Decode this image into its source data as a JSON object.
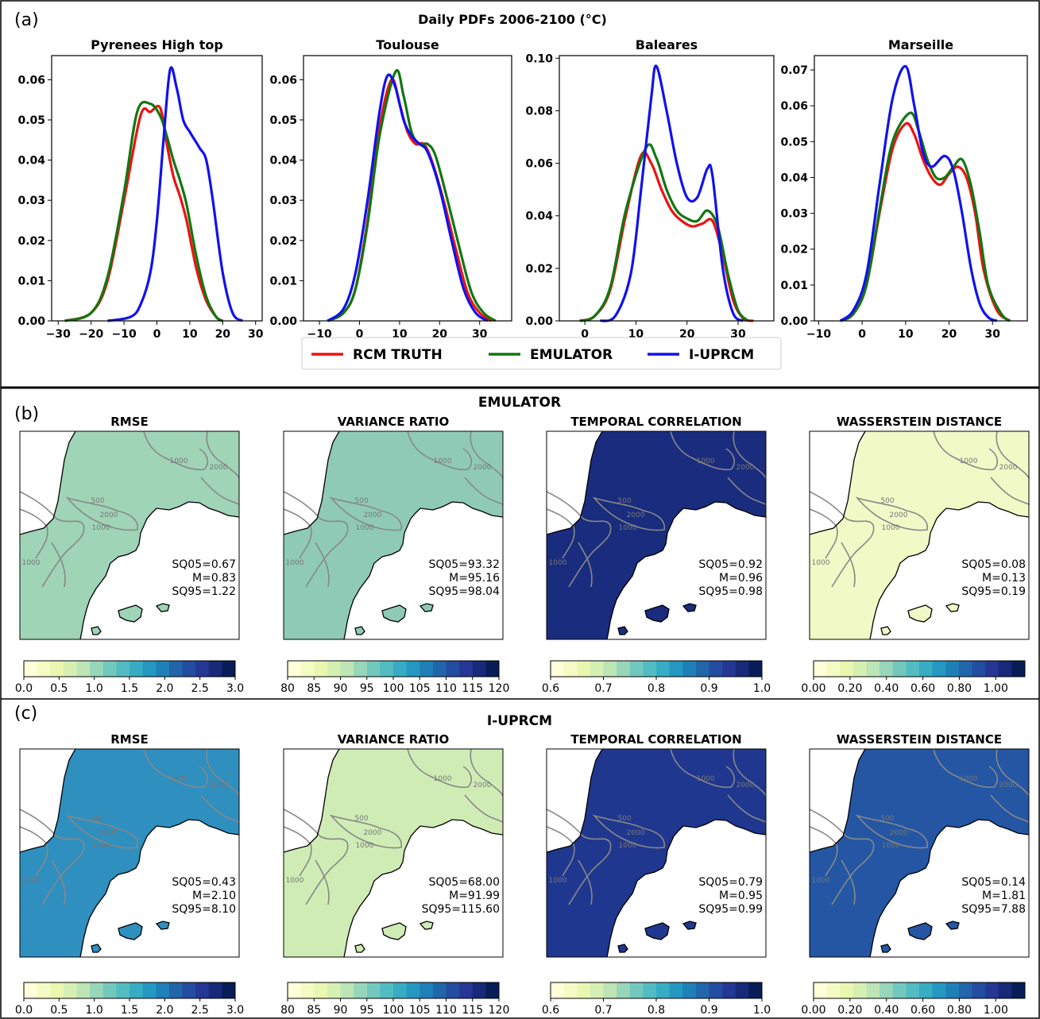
{
  "panel_a": {
    "label": "(a)",
    "title": "Daily PDFs 2006-2100  (°C)",
    "legend": [
      {
        "label": "RCM TRUTH",
        "color": "#ee1111"
      },
      {
        "label": "EMULATOR",
        "color": "#117711"
      },
      {
        "label": "I-UPRCM",
        "color": "#1111ee"
      }
    ]
  },
  "panel_b": {
    "label": "(b)",
    "title": "EMULATOR"
  },
  "panel_c": {
    "label": "(c)",
    "title": "I-UPRCM"
  },
  "chart_data": [
    {
      "type": "line",
      "title": "Pyrenees High top",
      "xlim": [
        -32,
        32
      ],
      "ylim": [
        0,
        0.066
      ],
      "xticks": [
        -30,
        -20,
        -10,
        0,
        10,
        20,
        30
      ],
      "yticks": [
        0,
        0.01,
        0.02,
        0.03,
        0.04,
        0.05,
        0.06
      ],
      "series": [
        {
          "name": "RCM TRUTH",
          "points": [
            [
              -28,
              0
            ],
            [
              -20,
              0.002
            ],
            [
              -15,
              0.01
            ],
            [
              -10,
              0.03
            ],
            [
              -5,
              0.051
            ],
            [
              -2,
              0.052
            ],
            [
              1,
              0.053
            ],
            [
              3,
              0.044
            ],
            [
              5,
              0.036
            ],
            [
              7,
              0.031
            ],
            [
              9,
              0.025
            ],
            [
              12,
              0.013
            ],
            [
              15,
              0.005
            ],
            [
              18,
              0.001
            ],
            [
              20,
              0
            ]
          ]
        },
        {
          "name": "EMULATOR",
          "points": [
            [
              -28,
              0
            ],
            [
              -20,
              0.002
            ],
            [
              -15,
              0.011
            ],
            [
              -10,
              0.032
            ],
            [
              -6,
              0.052
            ],
            [
              -2,
              0.054
            ],
            [
              1,
              0.051
            ],
            [
              3,
              0.046
            ],
            [
              5,
              0.04
            ],
            [
              7,
              0.035
            ],
            [
              9,
              0.029
            ],
            [
              12,
              0.016
            ],
            [
              15,
              0.006
            ],
            [
              18,
              0.001
            ],
            [
              20,
              0
            ]
          ]
        },
        {
          "name": "I-UPRCM",
          "points": [
            [
              -15,
              0
            ],
            [
              -8,
              0.001
            ],
            [
              -5,
              0.004
            ],
            [
              -2,
              0.012
            ],
            [
              0,
              0.025
            ],
            [
              2,
              0.045
            ],
            [
              4,
              0.0625
            ],
            [
              6,
              0.058
            ],
            [
              8,
              0.05
            ],
            [
              10,
              0.047
            ],
            [
              13,
              0.043
            ],
            [
              15,
              0.04
            ],
            [
              17,
              0.03
            ],
            [
              20,
              0.012
            ],
            [
              23,
              0.002
            ],
            [
              26,
              0
            ]
          ]
        }
      ]
    },
    {
      "type": "line",
      "title": "Toulouse",
      "xlim": [
        -14,
        38
      ],
      "ylim": [
        0,
        0.066
      ],
      "xticks": [
        -10,
        0,
        10,
        20,
        30
      ],
      "yticks": [
        0,
        0.01,
        0.02,
        0.03,
        0.04,
        0.05,
        0.06
      ],
      "series": [
        {
          "name": "RCM TRUTH",
          "points": [
            [
              -8,
              0
            ],
            [
              -4,
              0.002
            ],
            [
              -1,
              0.008
            ],
            [
              2,
              0.025
            ],
            [
              5,
              0.048
            ],
            [
              8,
              0.06
            ],
            [
              10,
              0.054
            ],
            [
              12,
              0.047
            ],
            [
              14,
              0.044
            ],
            [
              16,
              0.044
            ],
            [
              18,
              0.04
            ],
            [
              21,
              0.03
            ],
            [
              24,
              0.018
            ],
            [
              27,
              0.007
            ],
            [
              30,
              0.002
            ],
            [
              33,
              0
            ]
          ]
        },
        {
          "name": "EMULATOR",
          "points": [
            [
              -8,
              0
            ],
            [
              -4,
              0.002
            ],
            [
              -1,
              0.008
            ],
            [
              2,
              0.024
            ],
            [
              5,
              0.046
            ],
            [
              9,
              0.062
            ],
            [
              11,
              0.056
            ],
            [
              13,
              0.047
            ],
            [
              15,
              0.044
            ],
            [
              17,
              0.044
            ],
            [
              19,
              0.041
            ],
            [
              22,
              0.03
            ],
            [
              25,
              0.018
            ],
            [
              28,
              0.007
            ],
            [
              31,
              0.002
            ],
            [
              34,
              0
            ]
          ]
        },
        {
          "name": "I-UPRCM",
          "points": [
            [
              -8,
              0
            ],
            [
              -4,
              0.003
            ],
            [
              -1,
              0.012
            ],
            [
              2,
              0.03
            ],
            [
              5,
              0.052
            ],
            [
              7,
              0.061
            ],
            [
              9,
              0.058
            ],
            [
              11,
              0.05
            ],
            [
              13,
              0.046
            ],
            [
              15,
              0.044
            ],
            [
              17,
              0.042
            ],
            [
              20,
              0.033
            ],
            [
              23,
              0.02
            ],
            [
              26,
              0.008
            ],
            [
              29,
              0.002
            ],
            [
              32,
              0
            ]
          ]
        }
      ]
    },
    {
      "type": "line",
      "title": "Baleares",
      "xlim": [
        -5,
        37
      ],
      "ylim": [
        0,
        0.101
      ],
      "xticks": [
        0,
        10,
        20,
        30
      ],
      "yticks": [
        0,
        0.02,
        0.04,
        0.06,
        0.08,
        0.1
      ],
      "series": [
        {
          "name": "RCM TRUTH",
          "points": [
            [
              -1,
              0
            ],
            [
              2,
              0.002
            ],
            [
              5,
              0.012
            ],
            [
              8,
              0.04
            ],
            [
              11,
              0.063
            ],
            [
              13,
              0.06
            ],
            [
              15,
              0.05
            ],
            [
              17,
              0.042
            ],
            [
              19,
              0.038
            ],
            [
              21,
              0.036
            ],
            [
              23,
              0.037
            ],
            [
              25,
              0.038
            ],
            [
              27,
              0.025
            ],
            [
              29,
              0.008
            ],
            [
              31,
              0.001
            ],
            [
              33,
              0
            ]
          ]
        },
        {
          "name": "EMULATOR",
          "points": [
            [
              -1,
              0
            ],
            [
              2,
              0.002
            ],
            [
              5,
              0.013
            ],
            [
              8,
              0.042
            ],
            [
              12,
              0.066
            ],
            [
              14,
              0.062
            ],
            [
              16,
              0.05
            ],
            [
              18,
              0.042
            ],
            [
              20,
              0.039
            ],
            [
              22,
              0.038
            ],
            [
              24,
              0.042
            ],
            [
              26,
              0.036
            ],
            [
              28,
              0.018
            ],
            [
              30,
              0.004
            ],
            [
              32,
              0
            ]
          ]
        },
        {
          "name": "I-UPRCM",
          "points": [
            [
              3,
              0
            ],
            [
              6,
              0.002
            ],
            [
              9,
              0.018
            ],
            [
              11,
              0.05
            ],
            [
              13,
              0.085
            ],
            [
              14,
              0.097
            ],
            [
              16,
              0.08
            ],
            [
              18,
              0.06
            ],
            [
              20,
              0.047
            ],
            [
              22,
              0.047
            ],
            [
              24,
              0.058
            ],
            [
              25,
              0.055
            ],
            [
              27,
              0.02
            ],
            [
              29,
              0.003
            ],
            [
              31,
              0
            ]
          ]
        }
      ]
    },
    {
      "type": "line",
      "title": "Marseille",
      "xlim": [
        -11,
        38
      ],
      "ylim": [
        0,
        0.074
      ],
      "xticks": [
        -10,
        0,
        10,
        20,
        30
      ],
      "yticks": [
        0,
        0.01,
        0.02,
        0.03,
        0.04,
        0.05,
        0.06,
        0.07
      ],
      "series": [
        {
          "name": "RCM TRUTH",
          "points": [
            [
              -5,
              0
            ],
            [
              -2,
              0.002
            ],
            [
              1,
              0.01
            ],
            [
              4,
              0.03
            ],
            [
              7,
              0.048
            ],
            [
              10,
              0.055
            ],
            [
              12,
              0.052
            ],
            [
              14,
              0.045
            ],
            [
              16,
              0.04
            ],
            [
              18,
              0.038
            ],
            [
              20,
              0.041
            ],
            [
              22,
              0.043
            ],
            [
              24,
              0.04
            ],
            [
              26,
              0.03
            ],
            [
              28,
              0.014
            ],
            [
              31,
              0.003
            ],
            [
              34,
              0
            ]
          ]
        },
        {
          "name": "EMULATOR",
          "points": [
            [
              -5,
              0
            ],
            [
              -2,
              0.002
            ],
            [
              1,
              0.01
            ],
            [
              4,
              0.031
            ],
            [
              7,
              0.05
            ],
            [
              11,
              0.058
            ],
            [
              13,
              0.053
            ],
            [
              15,
              0.045
            ],
            [
              17,
              0.04
            ],
            [
              19,
              0.04
            ],
            [
              21,
              0.043
            ],
            [
              23,
              0.045
            ],
            [
              25,
              0.038
            ],
            [
              27,
              0.025
            ],
            [
              29,
              0.01
            ],
            [
              32,
              0.002
            ],
            [
              34,
              0
            ]
          ]
        },
        {
          "name": "I-UPRCM",
          "points": [
            [
              -5,
              0
            ],
            [
              -2,
              0.003
            ],
            [
              1,
              0.013
            ],
            [
              4,
              0.038
            ],
            [
              7,
              0.062
            ],
            [
              10,
              0.071
            ],
            [
              12,
              0.06
            ],
            [
              14,
              0.047
            ],
            [
              16,
              0.043
            ],
            [
              19,
              0.046
            ],
            [
              21,
              0.042
            ],
            [
              23,
              0.03
            ],
            [
              25,
              0.015
            ],
            [
              27,
              0.005
            ],
            [
              29,
              0.001
            ],
            [
              31,
              0
            ]
          ]
        }
      ]
    }
  ],
  "maps": {
    "titles": [
      "RMSE",
      "VARIANCE RATIO",
      "TEMPORAL CORRELATION",
      "WASSERSTEIN DISTANCE"
    ],
    "contour_labels": [
      "500",
      "1000",
      "2000"
    ],
    "colorbars": [
      {
        "ticks": [
          "0.0",
          "0.5",
          "1.0",
          "1.5",
          "2.0",
          "2.5",
          "3.0"
        ]
      },
      {
        "ticks": [
          "80",
          "85",
          "90",
          "95",
          "100",
          "105",
          "110",
          "115",
          "120"
        ]
      },
      {
        "ticks": [
          "0.6",
          "0.7",
          "0.8",
          "0.9",
          "1.0"
        ]
      },
      {
        "ticks": [
          "0.00",
          "0.20",
          "0.40",
          "0.60",
          "0.80",
          "1.00"
        ]
      }
    ],
    "stats_b": [
      [
        "SQ05=0.67",
        "M=0.83",
        "SQ95=1.22"
      ],
      [
        "SQ05=93.32",
        "M=95.16",
        "SQ95=98.04"
      ],
      [
        "SQ05=0.92",
        "M=0.96",
        "SQ95=0.98"
      ],
      [
        "SQ05=0.08",
        "M=0.13",
        "SQ95=0.19"
      ]
    ],
    "stats_c": [
      [
        "SQ05=0.43",
        "M=2.10",
        "SQ95=8.10"
      ],
      [
        "SQ05=68.00",
        "M=91.99",
        "SQ95=115.60"
      ],
      [
        "SQ05=0.79",
        "M=0.95",
        "SQ95=0.99"
      ],
      [
        "SQ05=0.14",
        "M=1.81",
        "SQ95=7.88"
      ]
    ],
    "fill_b": [
      "#9fd4b6",
      "#8fcab7",
      "#1a2c7d",
      "#f1f9c6"
    ],
    "fill_c": [
      "#2f8fbf",
      "#cfecb5",
      "#20378f",
      "#2456a3"
    ],
    "colormap": [
      "#ffffd9",
      "#edf8b1",
      "#c7e9b4",
      "#7fcdbb",
      "#41b6c4",
      "#1d91c0",
      "#225ea8",
      "#253494",
      "#081d58"
    ]
  }
}
